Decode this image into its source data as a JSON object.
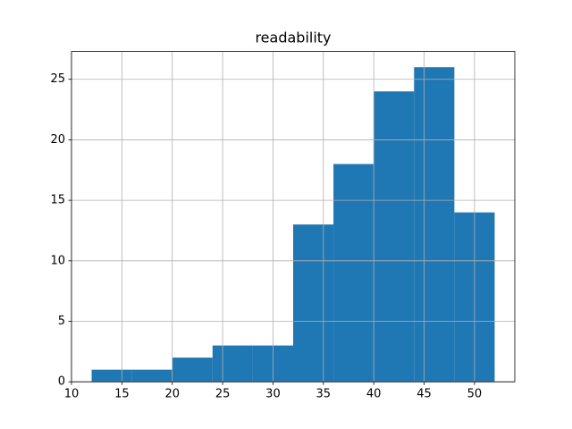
{
  "chart_data": {
    "type": "histogram",
    "title": "readability",
    "bins": [
      12,
      16,
      20,
      24,
      28,
      32,
      36,
      40,
      44,
      48,
      52
    ],
    "counts": [
      1,
      1,
      2,
      3,
      3,
      13,
      18,
      24,
      26,
      14
    ],
    "color": "#1f77b4",
    "xlim": [
      10,
      54
    ],
    "xticks": [
      10,
      15,
      20,
      25,
      30,
      35,
      40,
      45,
      50
    ],
    "ylim": [
      0,
      27.3
    ],
    "yticks": [
      0,
      5,
      10,
      15,
      20,
      25
    ],
    "grid": true
  }
}
